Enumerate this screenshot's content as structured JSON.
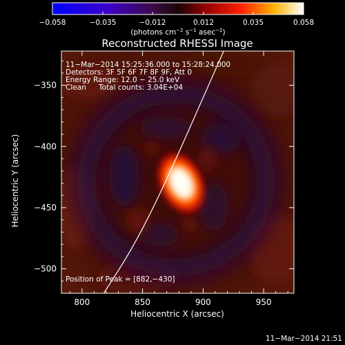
{
  "colorbar": {
    "ticks": [
      "−0.058",
      "−0.035",
      "−0.012",
      "0.012",
      "0.035",
      "0.058"
    ],
    "units_main": "(photons cm",
    "units_exp1": "−2",
    "units_mid": " s",
    "units_exp2": "−1",
    "units_tail": " asec",
    "units_exp3": "−2",
    "units_close": ")"
  },
  "header": {
    "line1": "11−Mar−2014 15:25:36.000 to 15:28:24.000",
    "line2": "Detectors: 3F 5F 6F 7F 8F 9F, Att 0",
    "line3": "Energy Range: 12.0 − 25.0 keV",
    "line4_a": "Clean",
    "line4_b": "Total counts: 3.04E+04"
  },
  "peak_label": "Position of Peak = [882,−430]",
  "footer_timestamp": "11−Mar−2014 21:51",
  "colors": {
    "background": "#000000",
    "limb_line": "#ffffff"
  },
  "chart_data": {
    "type": "heatmap",
    "title": "Reconstructed RHESSI Image",
    "xlabel": "Heliocentric X (arcsec)",
    "ylabel": "Heliocentric Y (arcsec)",
    "xlim": [
      783,
      975
    ],
    "ylim": [
      -520,
      -322
    ],
    "x_ticks": [
      800,
      850,
      900,
      950
    ],
    "x_tick_labels": [
      "800",
      "850",
      "900",
      "950"
    ],
    "y_ticks": [
      -350,
      -400,
      -450,
      -500
    ],
    "y_tick_labels": [
      "−350",
      "−400",
      "−450",
      "−500"
    ],
    "color_range": [
      -0.058,
      0.058
    ],
    "colormap": "blue-purple-red-yellow-white",
    "peak": {
      "x": 882,
      "y": -430
    },
    "limb_curve": [
      [
        818,
        -520
      ],
      [
        840,
        -486
      ],
      [
        860,
        -448
      ],
      [
        880,
        -405
      ],
      [
        900,
        -360
      ],
      [
        917,
        -322
      ]
    ]
  }
}
